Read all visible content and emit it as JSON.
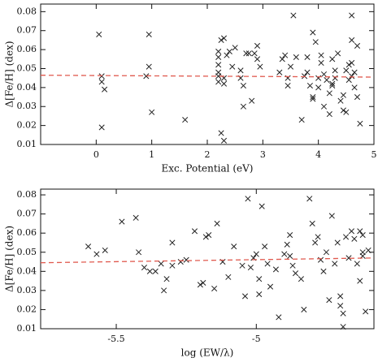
{
  "chart_data": [
    {
      "type": "scatter",
      "xlabel": "Exc. Potential (eV)",
      "ylabel": "Δ[Fe/H] (dex)",
      "color": "#222222",
      "xlim": [
        -1,
        5
      ],
      "ylim": [
        0.01,
        0.084
      ],
      "xticks": [
        0,
        1,
        2,
        3,
        4,
        5
      ],
      "yticks": [
        0.01,
        0.02,
        0.03,
        0.04,
        0.05,
        0.06,
        0.07,
        0.08
      ],
      "x": [
        0.05,
        0.1,
        0.1,
        0.15,
        0.1,
        0.9,
        0.95,
        0.95,
        1.0,
        1.6,
        2.2,
        2.2,
        2.2,
        2.2,
        2.2,
        2.2,
        2.25,
        2.3,
        2.25,
        2.3,
        2.3,
        2.3,
        2.35,
        2.4,
        2.45,
        2.5,
        2.6,
        2.6,
        2.65,
        2.65,
        2.7,
        2.75,
        2.8,
        2.85,
        2.9,
        2.9,
        2.95,
        3.3,
        3.35,
        3.4,
        3.45,
        3.45,
        3.5,
        3.55,
        3.6,
        3.7,
        3.75,
        3.8,
        3.8,
        3.85,
        3.9,
        3.9,
        3.9,
        3.95,
        4.0,
        4.0,
        4.05,
        4.05,
        4.1,
        4.1,
        4.15,
        4.2,
        4.2,
        4.25,
        4.25,
        4.25,
        4.3,
        4.3,
        4.35,
        4.4,
        4.45,
        4.45,
        4.5,
        4.5,
        4.55,
        4.55,
        4.6,
        4.6,
        4.6,
        4.6,
        4.65,
        4.65,
        4.7,
        4.75,
        4.7
      ],
      "values": [
        0.068,
        0.046,
        0.043,
        0.039,
        0.019,
        0.046,
        0.068,
        0.051,
        0.027,
        0.023,
        0.059,
        0.056,
        0.052,
        0.048,
        0.046,
        0.043,
        0.065,
        0.066,
        0.016,
        0.012,
        0.045,
        0.042,
        0.057,
        0.059,
        0.051,
        0.061,
        0.049,
        0.045,
        0.041,
        0.03,
        0.058,
        0.058,
        0.033,
        0.058,
        0.062,
        0.055,
        0.051,
        0.048,
        0.055,
        0.057,
        0.045,
        0.041,
        0.051,
        0.078,
        0.056,
        0.023,
        0.046,
        0.048,
        0.056,
        0.041,
        0.069,
        0.035,
        0.034,
        0.064,
        0.045,
        0.04,
        0.057,
        0.053,
        0.047,
        0.03,
        0.044,
        0.037,
        0.026,
        0.041,
        0.042,
        0.055,
        0.045,
        0.049,
        0.058,
        0.033,
        0.036,
        0.028,
        0.027,
        0.049,
        0.052,
        0.044,
        0.046,
        0.078,
        0.065,
        0.053,
        0.048,
        0.04,
        0.062,
        0.021,
        0.035
      ],
      "fit_line": {
        "color": "#e05a4f",
        "x": [
          -1,
          5
        ],
        "values": [
          0.0465,
          0.0455
        ]
      }
    },
    {
      "type": "scatter",
      "xlabel": "log (EW/λ)",
      "ylabel": "Δ[Fe/H] (dex)",
      "color": "#222222",
      "xlim": [
        -5.77,
        -4.58
      ],
      "ylim": [
        0.01,
        0.083
      ],
      "xticks": [
        -5.5,
        -5
      ],
      "yticks": [
        0.01,
        0.02,
        0.03,
        0.04,
        0.05,
        0.06,
        0.07,
        0.08
      ],
      "x": [
        -5.6,
        -5.57,
        -5.54,
        -5.48,
        -5.43,
        -5.42,
        -5.4,
        -5.38,
        -5.36,
        -5.34,
        -5.33,
        -5.32,
        -5.3,
        -5.3,
        -5.27,
        -5.25,
        -5.22,
        -5.2,
        -5.19,
        -5.18,
        -5.17,
        -5.15,
        -5.14,
        -5.12,
        -5.1,
        -5.08,
        -5.05,
        -5.04,
        -5.03,
        -5.02,
        -5.01,
        -5.0,
        -4.99,
        -4.99,
        -4.98,
        -4.97,
        -4.96,
        -4.95,
        -4.93,
        -4.92,
        -4.9,
        -4.89,
        -4.88,
        -4.88,
        -4.87,
        -4.86,
        -4.84,
        -4.83,
        -4.81,
        -4.8,
        -4.79,
        -4.78,
        -4.77,
        -4.76,
        -4.75,
        -4.74,
        -4.73,
        -4.72,
        -4.71,
        -4.7,
        -4.7,
        -4.69,
        -4.69,
        -4.68,
        -4.67,
        -4.66,
        -4.65,
        -4.64,
        -4.63,
        -4.62,
        -4.62,
        -4.61,
        -4.63,
        -4.62,
        -4.6
      ],
      "values": [
        0.053,
        0.049,
        0.051,
        0.066,
        0.068,
        0.05,
        0.042,
        0.04,
        0.04,
        0.044,
        0.03,
        0.036,
        0.055,
        0.043,
        0.045,
        0.046,
        0.061,
        0.033,
        0.034,
        0.058,
        0.059,
        0.031,
        0.065,
        0.045,
        0.037,
        0.053,
        0.043,
        0.027,
        0.078,
        0.042,
        0.047,
        0.049,
        0.036,
        0.028,
        0.074,
        0.053,
        0.044,
        0.032,
        0.041,
        0.016,
        0.049,
        0.054,
        0.059,
        0.048,
        0.043,
        0.039,
        0.036,
        0.02,
        0.078,
        0.065,
        0.055,
        0.058,
        0.046,
        0.04,
        0.05,
        0.025,
        0.069,
        0.044,
        0.055,
        0.027,
        0.022,
        0.018,
        0.011,
        0.058,
        0.047,
        0.061,
        0.057,
        0.044,
        0.035,
        0.05,
        0.048,
        0.019,
        0.061,
        0.059,
        0.051
      ],
      "fit_line": {
        "color": "#e05a4f",
        "x": [
          -5.77,
          -4.58
        ],
        "values": [
          0.0445,
          0.047
        ]
      }
    }
  ]
}
